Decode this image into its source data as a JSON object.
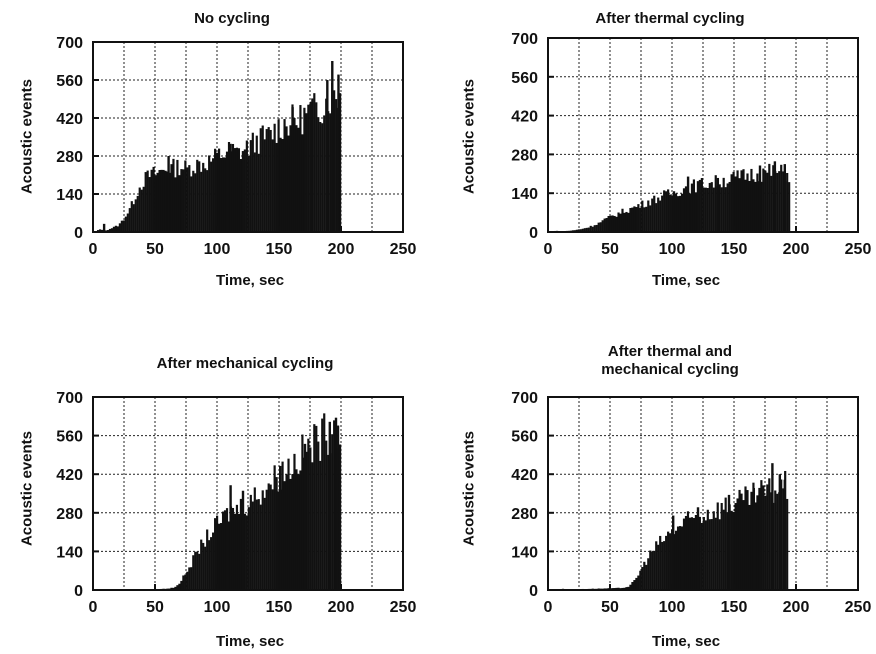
{
  "chart_data": [
    {
      "type": "bar",
      "title_lines": [
        "No cycling"
      ],
      "xlabel": "Time, sec",
      "ylabel": "Acoustic events",
      "xlim": [
        0,
        250
      ],
      "ylim": [
        0,
        700
      ],
      "xticks": [
        0,
        50,
        100,
        150,
        200,
        250
      ],
      "yticks": [
        0,
        140,
        280,
        420,
        560,
        700
      ],
      "grid": true,
      "bar_color": "#111111",
      "profile": [
        [
          0,
          0
        ],
        [
          5,
          10
        ],
        [
          10,
          6
        ],
        [
          15,
          16
        ],
        [
          20,
          25
        ],
        [
          25,
          55
        ],
        [
          30,
          95
        ],
        [
          35,
          150
        ],
        [
          40,
          190
        ],
        [
          45,
          210
        ],
        [
          50,
          215
        ],
        [
          55,
          225
        ],
        [
          60,
          240
        ],
        [
          65,
          235
        ],
        [
          70,
          245
        ],
        [
          75,
          230
        ],
        [
          80,
          245
        ],
        [
          85,
          250
        ],
        [
          90,
          255
        ],
        [
          95,
          265
        ],
        [
          100,
          280
        ],
        [
          105,
          290
        ],
        [
          110,
          300
        ],
        [
          115,
          290
        ],
        [
          120,
          300
        ],
        [
          125,
          315
        ],
        [
          130,
          330
        ],
        [
          135,
          345
        ],
        [
          140,
          350
        ],
        [
          145,
          370
        ],
        [
          150,
          390
        ],
        [
          155,
          400
        ],
        [
          160,
          410
        ],
        [
          165,
          410
        ],
        [
          170,
          430
        ],
        [
          175,
          445
        ],
        [
          180,
          455
        ],
        [
          185,
          470
        ],
        [
          190,
          500
        ],
        [
          195,
          520
        ],
        [
          199,
          500
        ]
      ],
      "spikes": [
        [
          8,
          30
        ],
        [
          60,
          280
        ],
        [
          110,
          325
        ],
        [
          160,
          460
        ],
        [
          175,
          480
        ],
        [
          188,
          560
        ],
        [
          192,
          630
        ],
        [
          197,
          580
        ]
      ]
    },
    {
      "type": "bar",
      "title_lines": [
        "After thermal cycling"
      ],
      "xlabel": "Time, sec",
      "ylabel": "Acoustic events",
      "xlim": [
        0,
        250
      ],
      "ylim": [
        0,
        700
      ],
      "xticks": [
        0,
        50,
        100,
        150,
        200,
        250
      ],
      "yticks": [
        0,
        140,
        280,
        420,
        560,
        700
      ],
      "grid": true,
      "bar_color": "#111111",
      "profile": [
        [
          0,
          0
        ],
        [
          5,
          4
        ],
        [
          10,
          3
        ],
        [
          15,
          4
        ],
        [
          20,
          6
        ],
        [
          25,
          10
        ],
        [
          30,
          15
        ],
        [
          35,
          22
        ],
        [
          40,
          32
        ],
        [
          45,
          45
        ],
        [
          50,
          55
        ],
        [
          55,
          65
        ],
        [
          60,
          75
        ],
        [
          65,
          82
        ],
        [
          70,
          92
        ],
        [
          75,
          100
        ],
        [
          80,
          110
        ],
        [
          85,
          118
        ],
        [
          90,
          128
        ],
        [
          95,
          135
        ],
        [
          100,
          140
        ],
        [
          105,
          150
        ],
        [
          110,
          160
        ],
        [
          115,
          165
        ],
        [
          120,
          170
        ],
        [
          125,
          175
        ],
        [
          130,
          178
        ],
        [
          135,
          180
        ],
        [
          140,
          185
        ],
        [
          145,
          190
        ],
        [
          150,
          195
        ],
        [
          155,
          200
        ],
        [
          160,
          205
        ],
        [
          165,
          210
        ],
        [
          170,
          212
        ],
        [
          175,
          215
        ],
        [
          180,
          218
        ],
        [
          185,
          215
        ],
        [
          190,
          212
        ],
        [
          194,
          205
        ]
      ],
      "spikes": [
        [
          112,
          200
        ],
        [
          136,
          195
        ],
        [
          170,
          240
        ],
        [
          182,
          255
        ],
        [
          190,
          245
        ]
      ]
    },
    {
      "type": "bar",
      "title_lines": [
        "After mechanical cycling"
      ],
      "xlabel": "Time, sec",
      "ylabel": "Acoustic events",
      "xlim": [
        0,
        250
      ],
      "ylim": [
        0,
        700
      ],
      "xticks": [
        0,
        50,
        100,
        150,
        200,
        250
      ],
      "yticks": [
        0,
        140,
        280,
        420,
        560,
        700
      ],
      "grid": true,
      "bar_color": "#111111",
      "profile": [
        [
          0,
          0
        ],
        [
          10,
          1
        ],
        [
          20,
          2
        ],
        [
          30,
          2
        ],
        [
          40,
          3
        ],
        [
          50,
          3
        ],
        [
          60,
          5
        ],
        [
          65,
          10
        ],
        [
          70,
          30
        ],
        [
          75,
          70
        ],
        [
          80,
          110
        ],
        [
          85,
          150
        ],
        [
          90,
          185
        ],
        [
          95,
          215
        ],
        [
          100,
          240
        ],
        [
          105,
          265
        ],
        [
          110,
          285
        ],
        [
          115,
          295
        ],
        [
          120,
          305
        ],
        [
          125,
          320
        ],
        [
          130,
          340
        ],
        [
          135,
          360
        ],
        [
          140,
          380
        ],
        [
          145,
          400
        ],
        [
          150,
          420
        ],
        [
          155,
          440
        ],
        [
          160,
          460
        ],
        [
          165,
          480
        ],
        [
          170,
          500
        ],
        [
          175,
          520
        ],
        [
          180,
          540
        ],
        [
          185,
          560
        ],
        [
          190,
          580
        ],
        [
          195,
          600
        ],
        [
          199,
          590
        ]
      ],
      "spikes": [
        [
          110,
          380
        ],
        [
          120,
          360
        ],
        [
          150,
          450
        ],
        [
          170,
          530
        ],
        [
          190,
          610
        ],
        [
          195,
          625
        ]
      ]
    },
    {
      "type": "bar",
      "title_lines": [
        "After thermal and",
        "mechanical cycling"
      ],
      "xlabel": "Time, sec",
      "ylabel": "Acoustic events",
      "xlim": [
        0,
        250
      ],
      "ylim": [
        0,
        700
      ],
      "xticks": [
        0,
        50,
        100,
        150,
        200,
        250
      ],
      "yticks": [
        0,
        140,
        280,
        420,
        560,
        700
      ],
      "grid": true,
      "bar_color": "#111111",
      "profile": [
        [
          0,
          0
        ],
        [
          10,
          4
        ],
        [
          20,
          3
        ],
        [
          30,
          4
        ],
        [
          40,
          5
        ],
        [
          50,
          6
        ],
        [
          60,
          8
        ],
        [
          65,
          14
        ],
        [
          70,
          40
        ],
        [
          75,
          80
        ],
        [
          80,
          120
        ],
        [
          85,
          150
        ],
        [
          90,
          175
        ],
        [
          95,
          195
        ],
        [
          100,
          215
        ],
        [
          105,
          230
        ],
        [
          110,
          245
        ],
        [
          115,
          255
        ],
        [
          120,
          265
        ],
        [
          125,
          275
        ],
        [
          130,
          285
        ],
        [
          135,
          295
        ],
        [
          140,
          300
        ],
        [
          145,
          310
        ],
        [
          150,
          315
        ],
        [
          155,
          320
        ],
        [
          160,
          330
        ],
        [
          165,
          340
        ],
        [
          170,
          350
        ],
        [
          175,
          355
        ],
        [
          180,
          360
        ],
        [
          185,
          370
        ],
        [
          190,
          380
        ],
        [
          193,
          360
        ]
      ],
      "spikes": [
        [
          100,
          270
        ],
        [
          120,
          300
        ],
        [
          145,
          345
        ],
        [
          165,
          370
        ],
        [
          180,
          460
        ],
        [
          186,
          420
        ],
        [
          190,
          400
        ]
      ]
    }
  ]
}
